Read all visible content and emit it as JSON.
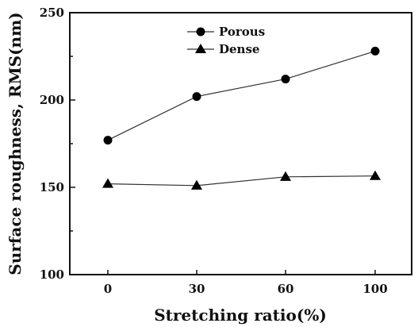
{
  "chart_data": {
    "type": "line",
    "x": [
      0,
      30,
      60,
      100
    ],
    "xlabel": "Stretching ratio(%)",
    "ylabel": "Surface roughness, RMS(nm)",
    "ylim": [
      100,
      250
    ],
    "y_ticks": [
      100,
      150,
      200,
      250
    ],
    "grid": false,
    "legend_position": "top-center",
    "series": [
      {
        "name": "Porous",
        "marker": "circle",
        "values": [
          177,
          202,
          212,
          228
        ]
      },
      {
        "name": "Dense",
        "marker": "triangle",
        "values": [
          152,
          151,
          156,
          156.5
        ]
      }
    ]
  }
}
